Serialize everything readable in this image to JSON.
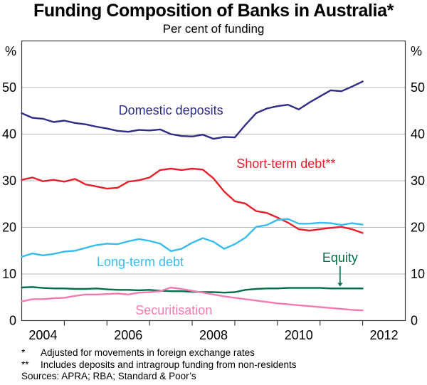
{
  "title": "Funding Composition of Banks in Australia*",
  "subtitle": "Per cent of funding",
  "footnotes": [
    {
      "marker": "*",
      "text": "Adjusted for movements in foreign exchange rates"
    },
    {
      "marker": "**",
      "text": "Includes deposits and intragroup funding from non-residents"
    }
  ],
  "sources": "Sources: APRA; RBA; Standard & Poor’s",
  "colors": {
    "gridline": "#b9b9b9",
    "frame": "#3a3a3a",
    "text": "#000000",
    "background": "#ffffff"
  },
  "chart_data": {
    "type": "line",
    "title": "Funding Composition of Banks in Australia*",
    "subtitle": "Per cent of funding",
    "unit_label": "%",
    "grid": "horizontal",
    "legend_position": "inline-labels",
    "xlim": [
      2004,
      2013
    ],
    "ylim": [
      0,
      60
    ],
    "y_ticks": [
      0,
      10,
      20,
      30,
      40,
      50
    ],
    "x_tick_years": [
      2005,
      2006,
      2007,
      2008,
      2009,
      2010,
      2011,
      2012
    ],
    "x_year_labels": [
      2004,
      2006,
      2008,
      2010,
      2012
    ],
    "x": [
      2004.0,
      2004.25,
      2004.5,
      2004.75,
      2005.0,
      2005.25,
      2005.5,
      2005.75,
      2006.0,
      2006.25,
      2006.5,
      2006.75,
      2007.0,
      2007.25,
      2007.5,
      2007.75,
      2008.0,
      2008.25,
      2008.5,
      2008.75,
      2009.0,
      2009.25,
      2009.5,
      2009.75,
      2010.0,
      2010.25,
      2010.5,
      2010.75,
      2011.0,
      2011.25,
      2011.5,
      2011.75,
      2012.0
    ],
    "series": [
      {
        "name": "Domestic deposits",
        "slug": "domestic-deposits",
        "color": "#2d2d86",
        "label": {
          "text": "Domestic deposits",
          "x": 2007.5,
          "y": 45.1
        },
        "values": [
          44.5,
          43.5,
          43.3,
          42.6,
          42.9,
          42.4,
          42.1,
          41.6,
          41.2,
          40.7,
          40.5,
          40.9,
          40.8,
          41.0,
          40.0,
          39.6,
          39.5,
          39.9,
          39.0,
          39.4,
          39.3,
          42.0,
          44.5,
          45.5,
          46.0,
          46.3,
          45.3,
          46.8,
          48.1,
          49.4,
          49.2,
          50.2,
          51.3
        ]
      },
      {
        "name": "Short-term debt",
        "slug": "short-term-debt",
        "color": "#e6202a",
        "label": {
          "text": "Short-term debt**",
          "x": 2010.2,
          "y": 33.7
        },
        "values": [
          30.2,
          30.7,
          29.9,
          30.2,
          29.8,
          30.4,
          29.2,
          28.8,
          28.3,
          28.5,
          29.8,
          30.1,
          30.7,
          32.3,
          32.6,
          32.3,
          32.6,
          32.4,
          30.5,
          27.7,
          25.6,
          25.1,
          23.5,
          23.1,
          22.1,
          21.0,
          19.6,
          19.3,
          19.6,
          19.9,
          20.1,
          19.6,
          18.8
        ]
      },
      {
        "name": "Long-term debt",
        "slug": "long-term-debt",
        "color": "#38bced",
        "label": {
          "text": "Long-term debt",
          "x": 2006.78,
          "y": 12.6
        },
        "values": [
          13.7,
          14.4,
          14.0,
          14.3,
          14.8,
          15.0,
          15.6,
          16.2,
          16.5,
          16.4,
          17.0,
          17.5,
          17.1,
          16.5,
          14.9,
          15.4,
          16.7,
          17.7,
          16.9,
          15.4,
          16.4,
          17.8,
          20.1,
          20.5,
          21.6,
          21.8,
          20.8,
          20.8,
          21.0,
          20.9,
          20.5,
          20.9,
          20.6
        ]
      },
      {
        "name": "Equity",
        "slug": "equity",
        "color": "#006f45",
        "label": {
          "text": "Equity",
          "x": 2011.47,
          "y": 13.5,
          "arrow": {
            "x": 2011.47,
            "from_y": 11.7,
            "to_y": 8.1,
            "tip_y": 7.3
          }
        },
        "values": [
          7.1,
          7.2,
          7.0,
          6.9,
          6.9,
          6.8,
          6.8,
          6.9,
          6.7,
          6.6,
          6.6,
          6.5,
          6.6,
          6.4,
          6.3,
          6.3,
          6.2,
          6.1,
          6.1,
          6.0,
          6.1,
          6.6,
          6.8,
          6.9,
          6.9,
          7.0,
          7.0,
          7.0,
          7.0,
          6.9,
          6.9,
          6.9,
          6.9
        ]
      },
      {
        "name": "Securitisation",
        "slug": "securitisation",
        "color": "#f27bb2",
        "label": {
          "text": "Securitisation",
          "x": 2007.57,
          "y": 2.2
        },
        "values": [
          4.1,
          4.6,
          4.6,
          4.8,
          4.9,
          5.3,
          5.6,
          5.6,
          5.7,
          5.8,
          5.6,
          6.0,
          6.1,
          6.3,
          7.1,
          6.8,
          6.4,
          6.0,
          5.6,
          5.2,
          4.9,
          4.6,
          4.3,
          4.0,
          3.7,
          3.5,
          3.3,
          3.1,
          2.9,
          2.7,
          2.5,
          2.3,
          2.2
        ]
      }
    ]
  }
}
